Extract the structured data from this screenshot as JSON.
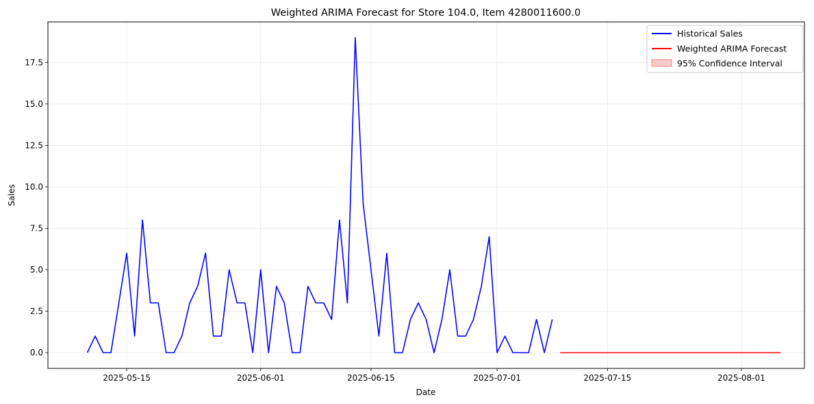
{
  "chart_data": {
    "type": "line",
    "title": "Weighted ARIMA Forecast for Store 104.0, Item 4280011600.0",
    "xlabel": "Date",
    "ylabel": "Sales",
    "x_range": [
      "2025-05-05",
      "2025-08-09"
    ],
    "ylim": [
      -0.95,
      19.95
    ],
    "grid": true,
    "legend_position": "top-right",
    "x_ticks": [
      "2025-05-15",
      "2025-06-01",
      "2025-06-15",
      "2025-07-01",
      "2025-07-15",
      "2025-08-01"
    ],
    "y_ticks": [
      0.0,
      2.5,
      5.0,
      7.5,
      10.0,
      12.5,
      15.0,
      17.5
    ],
    "y_tick_labels": [
      "0.0",
      "2.5",
      "5.0",
      "7.5",
      "10.0",
      "12.5",
      "15.0",
      "17.5"
    ],
    "series": [
      {
        "name": "Historical Sales",
        "color": "#0000ff",
        "start_date": "2025-05-10",
        "values": [
          0,
          1,
          0,
          0,
          3,
          6,
          1,
          8,
          3,
          3,
          0,
          0,
          1,
          3,
          4,
          6,
          1,
          1,
          5,
          3,
          3,
          0,
          5,
          0,
          4,
          3,
          0,
          0,
          4,
          3,
          3,
          2,
          8,
          3,
          19,
          9,
          5,
          1,
          6,
          0,
          0,
          2,
          3,
          2,
          0,
          2,
          5,
          1,
          1,
          2,
          4,
          7,
          0,
          1,
          0,
          0,
          0,
          2,
          0,
          2
        ]
      },
      {
        "name": "Weighted ARIMA Forecast",
        "color": "#ff0000",
        "start_date": "2025-07-09",
        "end_date": "2025-08-06",
        "value": 0
      }
    ],
    "confidence_interval": {
      "name": "95% Confidence Interval",
      "color": "#ffcccc",
      "border": "#ff8080"
    }
  }
}
